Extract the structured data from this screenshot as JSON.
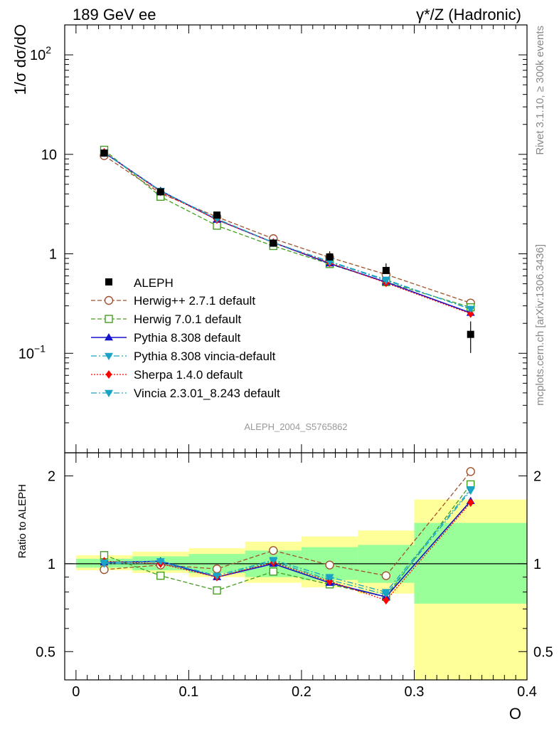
{
  "header": {
    "left": "189 GeV ee",
    "right": "γ*/Z (Hadronic)"
  },
  "side_labels": {
    "rivet": "Rivet 3.1.10, ≥ 300k events",
    "mcplots": "mcplots.cern.ch [arXiv:1306.3436]"
  },
  "watermark": "ALEPH_2004_S5765862",
  "chart_data": [
    {
      "type": "scatter",
      "panel": "main",
      "ylabel": "1/σ  dσ/dO",
      "yscale": "log",
      "ylim": [
        0.01,
        200
      ],
      "xlim": [
        -0.01,
        0.4
      ],
      "ytick_labels": [
        {
          "value": 100,
          "base": "10",
          "exp": "2"
        },
        {
          "value": 10,
          "base": "10",
          "exp": ""
        },
        {
          "value": 1,
          "base": "1",
          "exp": ""
        },
        {
          "value": 0.1,
          "base": "10",
          "exp": "−1"
        }
      ],
      "x": [
        0.025,
        0.075,
        0.125,
        0.175,
        0.225,
        0.275,
        0.35
      ],
      "data": {
        "name": "ALEPH",
        "values": [
          10.3,
          4.2,
          2.45,
          1.28,
          0.93,
          0.68,
          0.155
        ],
        "y_err_frac": [
          0.04,
          0.06,
          0.07,
          0.12,
          0.14,
          0.18,
          0.35
        ],
        "color": "#000000"
      },
      "series": [
        {
          "name": "Herwig++ 2.7.1 default",
          "color": "#a0522d",
          "style": "dashed",
          "marker": "circle-open",
          "values": [
            9.7,
            4.05,
            2.35,
            1.42,
            0.92,
            0.62,
            0.32
          ]
        },
        {
          "name": "Herwig 7.0.1 default",
          "color": "#449e1f",
          "style": "dashed",
          "marker": "square-open",
          "values": [
            11.1,
            3.75,
            1.92,
            1.2,
            0.79,
            0.52,
            0.29
          ]
        },
        {
          "name": "Pythia 8.308 default",
          "color": "#1414cc",
          "style": "solid",
          "marker": "triangle-up",
          "values": [
            10.4,
            4.3,
            2.2,
            1.3,
            0.8,
            0.52,
            0.255
          ]
        },
        {
          "name": "Pythia 8.308 vincia-default",
          "color": "#1aa3c4",
          "style": "dashdot",
          "marker": "triangle-down",
          "values": [
            10.35,
            4.25,
            2.22,
            1.29,
            0.84,
            0.55,
            0.278
          ]
        },
        {
          "name": "Sherpa 1.4.0 default",
          "color": "#ff0000",
          "style": "dotted",
          "marker": "diamond",
          "values": [
            10.5,
            4.2,
            2.2,
            1.3,
            0.81,
            0.51,
            0.25
          ]
        },
        {
          "name": "Vincia 2.3.01_8.243 default",
          "color": "#1aa3c4",
          "style": "dashdot",
          "marker": "triangle-down",
          "values": [
            10.4,
            4.3,
            2.25,
            1.3,
            0.83,
            0.54,
            0.28
          ]
        }
      ]
    },
    {
      "type": "scatter",
      "panel": "ratio",
      "ylabel": "Ratio to ALEPH",
      "xlabel": "O",
      "yscale": "log",
      "ylim": [
        0.4,
        2.4
      ],
      "xlim": [
        -0.01,
        0.4
      ],
      "xticks": [
        0,
        0.1,
        0.2,
        0.3,
        0.4
      ],
      "xtick_labels": [
        "0",
        "0.1",
        "0.2",
        "0.3",
        "0.4"
      ],
      "yticks": [
        0.5,
        1,
        2
      ],
      "ytick_labels": [
        "0.5",
        "1",
        "2"
      ],
      "bin_edges": [
        0,
        0.05,
        0.1,
        0.15,
        0.2,
        0.25,
        0.3,
        0.4
      ],
      "band_green": [
        [
          0.97,
          1.04
        ],
        [
          0.95,
          1.06
        ],
        [
          0.93,
          1.08
        ],
        [
          0.9,
          1.11
        ],
        [
          0.88,
          1.14
        ],
        [
          0.86,
          1.16
        ],
        [
          0.73,
          1.38
        ]
      ],
      "band_yellow": [
        [
          0.95,
          1.07
        ],
        [
          0.93,
          1.1
        ],
        [
          0.9,
          1.13
        ],
        [
          0.86,
          1.19
        ],
        [
          0.83,
          1.24
        ],
        [
          0.79,
          1.3
        ],
        [
          0.4,
          1.66
        ]
      ],
      "x": [
        0.025,
        0.075,
        0.125,
        0.175,
        0.225,
        0.275,
        0.35
      ],
      "series": [
        {
          "name": "Herwig++ 2.7.1 default",
          "color": "#a0522d",
          "style": "dashed",
          "marker": "circle-open",
          "values": [
            0.955,
            0.99,
            0.96,
            1.11,
            0.99,
            0.91,
            2.07
          ]
        },
        {
          "name": "Herwig 7.0.1 default",
          "color": "#449e1f",
          "style": "dashed",
          "marker": "square-open",
          "values": [
            1.07,
            0.91,
            0.81,
            0.94,
            0.85,
            0.77,
            1.87
          ]
        },
        {
          "name": "Pythia 8.308 default",
          "color": "#1414cc",
          "style": "solid",
          "marker": "triangle-up",
          "values": [
            1.01,
            1.02,
            0.9,
            1.0,
            0.86,
            0.77,
            1.64
          ]
        },
        {
          "name": "Pythia 8.308 vincia-default",
          "color": "#1aa3c4",
          "style": "dashdot",
          "marker": "triangle-down",
          "values": [
            1.0,
            1.005,
            0.9,
            1.02,
            0.88,
            0.785,
            1.78
          ]
        },
        {
          "name": "Sherpa 1.4.0 default",
          "color": "#ff0000",
          "style": "dotted",
          "marker": "diamond",
          "values": [
            1.02,
            1.0,
            0.9,
            1.01,
            0.87,
            0.75,
            1.62
          ]
        },
        {
          "name": "Vincia 2.3.01_8.243 default",
          "color": "#1aa3c4",
          "style": "dashdot",
          "marker": "triangle-down",
          "values": [
            1.01,
            1.02,
            0.91,
            1.03,
            0.9,
            0.8,
            1.8
          ]
        }
      ]
    }
  ]
}
